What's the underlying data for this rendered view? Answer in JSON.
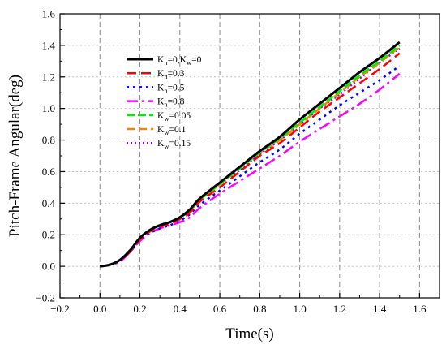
{
  "chart_data": {
    "type": "line",
    "xlabel": "Time(s)",
    "ylabel": "Pitch-Frame Angular(deg)",
    "xlim": [
      -0.2,
      1.7
    ],
    "ylim": [
      -0.2,
      1.6
    ],
    "xticks": [
      -0.2,
      0.0,
      0.2,
      0.4,
      0.6,
      0.8,
      1.0,
      1.2,
      1.4,
      1.6
    ],
    "yticks": [
      -0.2,
      0.0,
      0.2,
      0.4,
      0.6,
      0.8,
      1.0,
      1.2,
      1.4,
      1.6
    ],
    "xtick_labels": [
      "−0.2",
      "0.0",
      "0.2",
      "0.4",
      "0.6",
      "0.8",
      "1.0",
      "1.2",
      "1.4",
      "1.6"
    ],
    "ytick_labels": [
      "−0.2",
      "0.0",
      "0.2",
      "0.4",
      "0.6",
      "0.8",
      "1.0",
      "1.2",
      "1.4",
      "1.6"
    ],
    "grid": {
      "vertical": true,
      "horizontal": true,
      "vertical_style": "dashed",
      "horizontal_style": "dotted"
    },
    "legend_position": "upper-left",
    "x": [
      0.0,
      0.05,
      0.1,
      0.15,
      0.2,
      0.25,
      0.3,
      0.35,
      0.4,
      0.45,
      0.5,
      0.6,
      0.7,
      0.8,
      0.9,
      1.0,
      1.1,
      1.2,
      1.3,
      1.4,
      1.5
    ],
    "series": [
      {
        "name": "K_n=0,K_w=0",
        "legend_parts": [
          [
            "K",
            "n",
            "=0,"
          ],
          [
            "K",
            "w",
            "=0"
          ]
        ],
        "color": "#000000",
        "dash": "solid",
        "width": 3,
        "values": [
          0.0,
          0.01,
          0.04,
          0.1,
          0.18,
          0.23,
          0.26,
          0.28,
          0.31,
          0.36,
          0.43,
          0.53,
          0.63,
          0.73,
          0.82,
          0.93,
          1.03,
          1.13,
          1.23,
          1.32,
          1.42
        ]
      },
      {
        "name": "K_n=0.3",
        "legend_parts": [
          [
            "K",
            "n",
            "=0.3"
          ]
        ],
        "color": "#ff0000",
        "dash": "12 6",
        "width": 2.5,
        "values": [
          0.0,
          0.01,
          0.04,
          0.09,
          0.17,
          0.22,
          0.25,
          0.27,
          0.3,
          0.34,
          0.41,
          0.5,
          0.6,
          0.7,
          0.78,
          0.88,
          0.98,
          1.07,
          1.16,
          1.25,
          1.35
        ]
      },
      {
        "name": "K_n=0.5",
        "legend_parts": [
          [
            "K",
            "n",
            "=0.5"
          ]
        ],
        "color": "#0000ff",
        "dash": "3 5",
        "width": 2.5,
        "values": [
          0.0,
          0.01,
          0.04,
          0.09,
          0.17,
          0.21,
          0.24,
          0.26,
          0.29,
          0.33,
          0.39,
          0.48,
          0.57,
          0.66,
          0.74,
          0.84,
          0.93,
          1.02,
          1.1,
          1.18,
          1.27
        ]
      },
      {
        "name": "K_n=0.8",
        "legend_parts": [
          [
            "K",
            "n",
            "=0.8"
          ]
        ],
        "color": "#ff00ff",
        "dash": "14 5 3 5",
        "width": 2.5,
        "values": [
          0.0,
          0.01,
          0.03,
          0.09,
          0.16,
          0.21,
          0.24,
          0.26,
          0.28,
          0.31,
          0.37,
          0.46,
          0.54,
          0.62,
          0.7,
          0.79,
          0.87,
          0.95,
          1.03,
          1.12,
          1.22
        ]
      },
      {
        "name": "K_w=0.05",
        "legend_parts": [
          [
            "K",
            "w",
            "=0.05"
          ]
        ],
        "color": "#00ee00",
        "dash": "10 4",
        "width": 2.5,
        "values": [
          0.0,
          0.01,
          0.04,
          0.1,
          0.18,
          0.23,
          0.26,
          0.28,
          0.31,
          0.35,
          0.42,
          0.52,
          0.62,
          0.72,
          0.81,
          0.91,
          1.01,
          1.11,
          1.21,
          1.3,
          1.4
        ]
      },
      {
        "name": "K_w=0.1",
        "legend_parts": [
          [
            "K",
            "w",
            "=0.1"
          ]
        ],
        "color": "#ff8000",
        "dash": "10 5",
        "width": 2.5,
        "values": [
          0.0,
          0.01,
          0.04,
          0.1,
          0.18,
          0.23,
          0.26,
          0.28,
          0.31,
          0.35,
          0.42,
          0.52,
          0.62,
          0.72,
          0.8,
          0.9,
          1.0,
          1.1,
          1.2,
          1.29,
          1.39
        ]
      },
      {
        "name": "K_w=0.15",
        "legend_parts": [
          [
            "K",
            "w",
            "=0.15"
          ]
        ],
        "color": "#8000ff",
        "dash": "2 3",
        "width": 2.5,
        "values": [
          0.0,
          0.01,
          0.04,
          0.1,
          0.18,
          0.23,
          0.26,
          0.28,
          0.31,
          0.35,
          0.42,
          0.52,
          0.61,
          0.71,
          0.8,
          0.9,
          1.0,
          1.09,
          1.19,
          1.29,
          1.38
        ]
      }
    ]
  }
}
